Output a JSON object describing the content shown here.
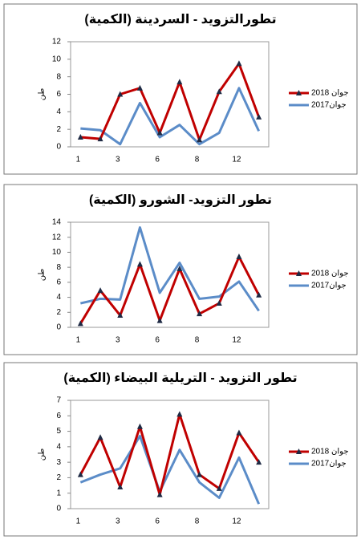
{
  "chart_data": [
    {
      "type": "line",
      "title": "تطورالتزويد - السردينة (الكمية)",
      "y_label": "طن",
      "categories": [
        "1",
        null,
        "3",
        null,
        "6",
        null,
        "8",
        null,
        "12",
        null
      ],
      "series": [
        {
          "name": "جوان 2018",
          "color": "#c00000",
          "marker": "triangle",
          "values": [
            1.1,
            0.9,
            6,
            6.7,
            1.6,
            7.4,
            0.8,
            6.3,
            9.5,
            3.4
          ]
        },
        {
          "name": "جوان2017",
          "color": "#5b8cc8",
          "values": [
            2.1,
            1.9,
            0.3,
            5.0,
            1.1,
            2.5,
            0.3,
            1.6,
            6.7,
            1.8
          ]
        }
      ],
      "ylim": [
        0,
        12
      ],
      "yticks": [
        0,
        2,
        4,
        6,
        8,
        10,
        12
      ]
    },
    {
      "type": "line",
      "title": "تطور التزويد- الشورو (الكمية)",
      "y_label": "طن",
      "categories": [
        "1",
        null,
        "3",
        null,
        "6",
        null,
        "8",
        null,
        "12",
        null
      ],
      "series": [
        {
          "name": "جوان 2018",
          "color": "#c00000",
          "marker": "triangle",
          "values": [
            0.5,
            4.9,
            1.6,
            8.4,
            0.9,
            7.8,
            1.8,
            3.2,
            9.4,
            4.3
          ]
        },
        {
          "name": "جوان2017",
          "color": "#5b8cc8",
          "values": [
            3.2,
            3.8,
            3.7,
            13.3,
            4.6,
            8.6,
            3.8,
            4.1,
            6.1,
            2.2
          ]
        }
      ],
      "ylim": [
        0,
        14
      ],
      "yticks": [
        0,
        2,
        4,
        6,
        8,
        10,
        12,
        14
      ]
    },
    {
      "type": "line",
      "title": "تطور التزويد - التريلية البيضاء (الكمية)",
      "y_label": "طن",
      "categories": [
        "1",
        null,
        "3",
        null,
        "6",
        null,
        "8",
        null,
        "12",
        null
      ],
      "series": [
        {
          "name": "جوان 2018",
          "color": "#c00000",
          "marker": "triangle",
          "values": [
            2.2,
            4.6,
            1.4,
            5.3,
            0.9,
            6.1,
            2.2,
            1.3,
            4.9,
            3.0
          ]
        },
        {
          "name": "جوان2017",
          "color": "#5b8cc8",
          "values": [
            1.7,
            2.2,
            2.6,
            4.7,
            1.1,
            3.8,
            1.7,
            0.7,
            3.3,
            0.3
          ]
        }
      ],
      "ylim": [
        0,
        7
      ],
      "yticks": [
        0,
        1,
        2,
        3,
        4,
        5,
        6,
        7
      ]
    }
  ]
}
